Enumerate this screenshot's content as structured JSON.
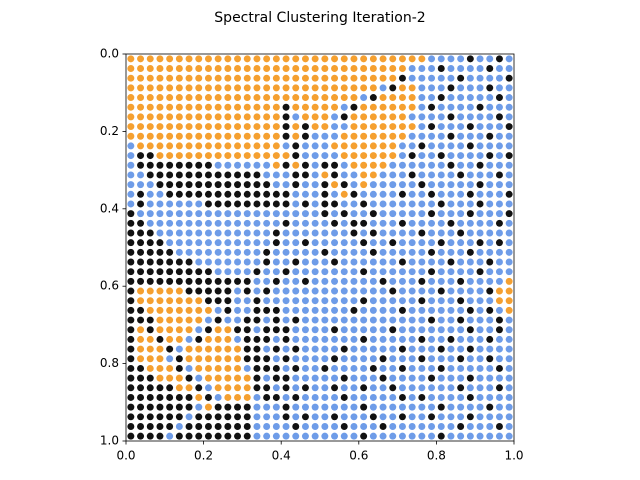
{
  "chart_data": {
    "type": "scatter",
    "title": "Spectral Clustering Iteration-2",
    "xlim": [
      0,
      1
    ],
    "ylim": [
      1,
      0
    ],
    "xticks": [
      {
        "value": 0,
        "label": "0.0"
      },
      0.2,
      0.4,
      0.6,
      0.8,
      {
        "value": 1,
        "label": "1.0"
      }
    ],
    "yticks": [
      {
        "value": 0,
        "label": "0.0"
      },
      0.2,
      0.4,
      0.6,
      0.8,
      {
        "value": 1,
        "label": "1.0"
      }
    ],
    "cluster_colors": [
      "#f5a030",
      "#6e9ce8",
      "#111111"
    ],
    "clusters": [
      [
        0,
        0,
        0,
        0,
        0,
        0,
        0,
        0,
        0,
        0,
        0,
        0,
        0,
        0,
        0,
        0,
        0,
        0,
        0,
        0,
        0,
        0,
        0,
        0,
        0,
        0,
        0,
        0,
        0,
        0,
        0,
        1,
        1,
        1,
        1,
        2,
        1,
        1,
        2,
        1
      ],
      [
        0,
        0,
        0,
        0,
        0,
        0,
        0,
        0,
        0,
        0,
        0,
        0,
        0,
        0,
        0,
        0,
        0,
        0,
        0,
        0,
        0,
        0,
        0,
        0,
        0,
        0,
        0,
        0,
        0,
        1,
        1,
        1,
        2,
        1,
        1,
        1,
        1,
        2,
        1,
        1
      ],
      [
        0,
        0,
        0,
        0,
        0,
        0,
        0,
        0,
        0,
        0,
        0,
        0,
        0,
        0,
        0,
        0,
        0,
        0,
        0,
        0,
        0,
        0,
        0,
        0,
        0,
        0,
        0,
        0,
        2,
        1,
        1,
        1,
        1,
        1,
        2,
        1,
        1,
        1,
        1,
        2
      ],
      [
        0,
        0,
        0,
        0,
        0,
        0,
        0,
        0,
        0,
        0,
        0,
        0,
        0,
        0,
        0,
        0,
        0,
        0,
        0,
        0,
        0,
        0,
        0,
        0,
        0,
        0,
        1,
        2,
        0,
        0,
        1,
        1,
        1,
        2,
        1,
        1,
        1,
        2,
        1,
        1
      ],
      [
        0,
        0,
        0,
        0,
        0,
        0,
        0,
        0,
        0,
        0,
        0,
        0,
        0,
        0,
        0,
        0,
        0,
        0,
        0,
        0,
        0,
        0,
        0,
        0,
        1,
        2,
        0,
        0,
        0,
        0,
        1,
        1,
        2,
        1,
        1,
        1,
        1,
        1,
        2,
        1
      ],
      [
        0,
        0,
        0,
        0,
        0,
        0,
        0,
        0,
        0,
        0,
        0,
        0,
        0,
        0,
        0,
        0,
        2,
        0,
        0,
        0,
        0,
        0,
        1,
        2,
        0,
        0,
        0,
        0,
        0,
        0,
        1,
        2,
        1,
        1,
        1,
        1,
        2,
        1,
        1,
        1
      ],
      [
        0,
        0,
        0,
        0,
        0,
        0,
        0,
        0,
        0,
        0,
        0,
        0,
        0,
        0,
        0,
        0,
        2,
        1,
        0,
        0,
        0,
        1,
        2,
        0,
        0,
        0,
        0,
        0,
        0,
        1,
        1,
        1,
        1,
        2,
        1,
        1,
        1,
        1,
        2,
        1
      ],
      [
        0,
        0,
        0,
        0,
        0,
        0,
        0,
        0,
        0,
        0,
        0,
        0,
        0,
        0,
        0,
        0,
        2,
        0,
        2,
        0,
        0,
        1,
        1,
        0,
        0,
        0,
        0,
        0,
        0,
        0,
        1,
        2,
        1,
        1,
        1,
        2,
        1,
        1,
        1,
        2
      ],
      [
        0,
        0,
        0,
        0,
        0,
        0,
        0,
        0,
        0,
        0,
        0,
        0,
        0,
        0,
        0,
        0,
        2,
        0,
        2,
        1,
        1,
        1,
        0,
        0,
        0,
        0,
        0,
        0,
        0,
        1,
        1,
        1,
        1,
        2,
        1,
        1,
        1,
        2,
        1,
        1
      ],
      [
        1,
        0,
        0,
        0,
        0,
        0,
        0,
        0,
        0,
        0,
        0,
        0,
        0,
        0,
        0,
        0,
        1,
        2,
        1,
        1,
        1,
        0,
        0,
        0,
        0,
        0,
        0,
        0,
        1,
        1,
        2,
        1,
        1,
        1,
        1,
        2,
        1,
        1,
        1,
        1
      ],
      [
        1,
        2,
        2,
        0,
        0,
        0,
        0,
        0,
        0,
        0,
        0,
        0,
        0,
        0,
        0,
        0,
        0,
        2,
        1,
        1,
        1,
        1,
        0,
        0,
        0,
        0,
        0,
        0,
        1,
        2,
        1,
        1,
        2,
        1,
        1,
        1,
        1,
        2,
        1,
        2
      ],
      [
        1,
        2,
        2,
        2,
        2,
        2,
        2,
        2,
        2,
        1,
        1,
        1,
        1,
        1,
        1,
        0,
        2,
        0,
        2,
        1,
        2,
        2,
        1,
        0,
        0,
        0,
        0,
        1,
        1,
        1,
        1,
        1,
        1,
        2,
        1,
        1,
        2,
        1,
        1,
        1
      ],
      [
        1,
        1,
        2,
        2,
        2,
        2,
        2,
        2,
        2,
        2,
        2,
        2,
        2,
        2,
        1,
        1,
        1,
        2,
        2,
        1,
        0,
        2,
        1,
        1,
        0,
        0,
        1,
        1,
        1,
        2,
        1,
        1,
        1,
        1,
        2,
        1,
        1,
        1,
        2,
        1
      ],
      [
        1,
        1,
        1,
        2,
        2,
        2,
        2,
        2,
        2,
        2,
        2,
        2,
        2,
        2,
        2,
        1,
        1,
        2,
        1,
        1,
        2,
        0,
        2,
        1,
        0,
        1,
        1,
        1,
        1,
        1,
        2,
        1,
        1,
        1,
        1,
        1,
        2,
        1,
        1,
        1
      ],
      [
        1,
        2,
        1,
        1,
        2,
        2,
        2,
        2,
        2,
        2,
        2,
        2,
        2,
        2,
        2,
        2,
        2,
        1,
        1,
        1,
        2,
        1,
        0,
        2,
        1,
        1,
        1,
        1,
        2,
        1,
        1,
        2,
        1,
        1,
        1,
        2,
        1,
        1,
        1,
        2
      ],
      [
        1,
        2,
        1,
        1,
        1,
        1,
        1,
        1,
        2,
        2,
        2,
        2,
        2,
        2,
        2,
        2,
        2,
        1,
        2,
        1,
        2,
        2,
        1,
        1,
        2,
        1,
        1,
        1,
        1,
        1,
        1,
        1,
        2,
        1,
        1,
        1,
        2,
        1,
        1,
        1
      ],
      [
        2,
        1,
        1,
        1,
        1,
        1,
        1,
        1,
        1,
        1,
        1,
        1,
        1,
        1,
        1,
        1,
        1,
        1,
        1,
        1,
        2,
        1,
        2,
        1,
        1,
        2,
        1,
        1,
        1,
        1,
        1,
        2,
        1,
        1,
        1,
        2,
        1,
        1,
        1,
        2
      ],
      [
        2,
        2,
        1,
        1,
        1,
        1,
        1,
        1,
        1,
        1,
        1,
        1,
        1,
        1,
        1,
        1,
        2,
        1,
        1,
        1,
        1,
        2,
        1,
        2,
        2,
        1,
        1,
        1,
        2,
        1,
        1,
        1,
        1,
        2,
        1,
        1,
        1,
        1,
        2,
        1
      ],
      [
        2,
        2,
        2,
        1,
        1,
        1,
        1,
        1,
        1,
        1,
        1,
        1,
        1,
        1,
        1,
        2,
        1,
        1,
        1,
        1,
        1,
        1,
        1,
        2,
        1,
        2,
        1,
        1,
        1,
        1,
        2,
        1,
        1,
        1,
        2,
        1,
        1,
        1,
        1,
        1
      ],
      [
        2,
        2,
        2,
        2,
        1,
        1,
        1,
        1,
        1,
        1,
        1,
        1,
        1,
        1,
        1,
        2,
        1,
        1,
        2,
        1,
        1,
        1,
        1,
        1,
        2,
        1,
        1,
        2,
        1,
        1,
        1,
        1,
        2,
        1,
        1,
        1,
        2,
        1,
        2,
        1
      ],
      [
        2,
        2,
        2,
        2,
        2,
        1,
        1,
        1,
        1,
        1,
        1,
        1,
        1,
        1,
        2,
        1,
        1,
        1,
        1,
        1,
        2,
        1,
        1,
        1,
        1,
        2,
        1,
        1,
        1,
        1,
        1,
        2,
        1,
        1,
        1,
        2,
        1,
        1,
        1,
        1
      ],
      [
        2,
        2,
        2,
        2,
        2,
        2,
        2,
        1,
        1,
        1,
        1,
        1,
        1,
        1,
        2,
        1,
        1,
        2,
        1,
        1,
        1,
        2,
        1,
        1,
        1,
        1,
        1,
        1,
        2,
        1,
        1,
        1,
        1,
        2,
        1,
        1,
        1,
        2,
        1,
        1
      ],
      [
        2,
        2,
        2,
        2,
        2,
        2,
        2,
        2,
        2,
        1,
        1,
        1,
        1,
        2,
        1,
        1,
        2,
        1,
        1,
        1,
        1,
        1,
        1,
        1,
        2,
        1,
        1,
        1,
        1,
        1,
        1,
        2,
        1,
        1,
        1,
        1,
        2,
        1,
        1,
        1
      ],
      [
        2,
        2,
        2,
        2,
        2,
        2,
        2,
        2,
        2,
        2,
        2,
        2,
        2,
        1,
        1,
        2,
        1,
        1,
        2,
        1,
        1,
        1,
        1,
        1,
        1,
        1,
        2,
        1,
        1,
        1,
        2,
        1,
        1,
        1,
        2,
        1,
        1,
        1,
        1,
        0
      ],
      [
        2,
        0,
        0,
        0,
        0,
        0,
        2,
        2,
        2,
        2,
        2,
        1,
        2,
        1,
        2,
        1,
        1,
        1,
        1,
        1,
        1,
        1,
        1,
        1,
        1,
        1,
        1,
        2,
        1,
        1,
        1,
        1,
        2,
        1,
        1,
        1,
        1,
        2,
        0,
        0
      ],
      [
        2,
        0,
        0,
        0,
        0,
        0,
        0,
        0,
        2,
        2,
        2,
        1,
        1,
        2,
        1,
        1,
        1,
        1,
        1,
        1,
        1,
        1,
        1,
        1,
        2,
        1,
        1,
        1,
        1,
        1,
        2,
        1,
        1,
        1,
        2,
        1,
        1,
        1,
        0,
        0
      ],
      [
        2,
        2,
        0,
        0,
        0,
        0,
        0,
        0,
        0,
        1,
        2,
        1,
        1,
        2,
        2,
        2,
        1,
        1,
        1,
        1,
        1,
        1,
        1,
        2,
        1,
        1,
        1,
        1,
        2,
        1,
        1,
        1,
        1,
        1,
        1,
        2,
        1,
        2,
        1,
        0
      ],
      [
        2,
        2,
        2,
        0,
        0,
        0,
        0,
        0,
        1,
        2,
        1,
        1,
        2,
        2,
        1,
        2,
        1,
        2,
        1,
        1,
        1,
        1,
        1,
        1,
        1,
        1,
        1,
        1,
        1,
        1,
        1,
        2,
        1,
        1,
        2,
        1,
        1,
        1,
        2,
        1
      ],
      [
        2,
        0,
        2,
        0,
        0,
        0,
        0,
        1,
        2,
        0,
        0,
        2,
        2,
        1,
        2,
        2,
        2,
        1,
        1,
        1,
        1,
        2,
        1,
        1,
        1,
        1,
        1,
        2,
        1,
        1,
        1,
        1,
        1,
        1,
        1,
        2,
        1,
        1,
        2,
        1
      ],
      [
        2,
        0,
        0,
        2,
        0,
        0,
        1,
        2,
        0,
        0,
        0,
        1,
        2,
        2,
        2,
        1,
        2,
        1,
        1,
        1,
        1,
        1,
        1,
        1,
        2,
        1,
        1,
        1,
        1,
        1,
        2,
        1,
        1,
        2,
        1,
        1,
        1,
        2,
        1,
        1
      ],
      [
        2,
        0,
        0,
        0,
        2,
        1,
        0,
        0,
        0,
        0,
        0,
        0,
        2,
        2,
        1,
        2,
        1,
        2,
        1,
        1,
        1,
        1,
        2,
        1,
        1,
        1,
        1,
        1,
        2,
        1,
        1,
        1,
        2,
        1,
        1,
        2,
        1,
        1,
        1,
        1
      ],
      [
        2,
        0,
        0,
        0,
        1,
        2,
        0,
        0,
        0,
        0,
        0,
        0,
        2,
        2,
        2,
        1,
        2,
        1,
        1,
        1,
        1,
        2,
        1,
        1,
        1,
        1,
        2,
        1,
        1,
        1,
        2,
        1,
        1,
        1,
        2,
        1,
        1,
        2,
        1,
        1
      ],
      [
        2,
        2,
        0,
        0,
        0,
        2,
        1,
        0,
        0,
        0,
        0,
        0,
        1,
        2,
        2,
        2,
        1,
        2,
        1,
        1,
        2,
        1,
        1,
        1,
        1,
        2,
        1,
        1,
        2,
        1,
        1,
        1,
        2,
        1,
        1,
        1,
        1,
        1,
        2,
        1
      ],
      [
        2,
        2,
        2,
        0,
        0,
        0,
        2,
        1,
        0,
        0,
        0,
        0,
        0,
        2,
        1,
        2,
        2,
        1,
        1,
        1,
        1,
        1,
        2,
        1,
        1,
        1,
        2,
        1,
        1,
        1,
        1,
        2,
        1,
        1,
        1,
        2,
        1,
        1,
        1,
        1
      ],
      [
        2,
        2,
        2,
        2,
        2,
        0,
        0,
        2,
        1,
        0,
        0,
        0,
        0,
        2,
        2,
        1,
        2,
        1,
        2,
        1,
        1,
        2,
        1,
        1,
        2,
        1,
        1,
        2,
        1,
        1,
        1,
        1,
        1,
        1,
        2,
        1,
        1,
        1,
        2,
        1
      ],
      [
        2,
        2,
        2,
        2,
        2,
        2,
        2,
        0,
        2,
        1,
        0,
        0,
        0,
        1,
        2,
        2,
        1,
        2,
        1,
        1,
        1,
        1,
        2,
        1,
        1,
        1,
        1,
        1,
        2,
        1,
        2,
        1,
        1,
        1,
        1,
        2,
        1,
        1,
        1,
        1
      ],
      [
        2,
        2,
        2,
        2,
        2,
        2,
        2,
        1,
        0,
        2,
        2,
        2,
        2,
        1,
        1,
        1,
        2,
        1,
        1,
        1,
        1,
        1,
        1,
        1,
        2,
        1,
        1,
        1,
        1,
        1,
        1,
        1,
        2,
        1,
        1,
        1,
        1,
        2,
        1,
        1
      ],
      [
        2,
        2,
        2,
        2,
        2,
        2,
        1,
        2,
        2,
        2,
        2,
        2,
        2,
        1,
        1,
        1,
        2,
        1,
        2,
        1,
        1,
        2,
        1,
        1,
        1,
        2,
        1,
        1,
        2,
        1,
        1,
        2,
        1,
        1,
        1,
        2,
        1,
        1,
        1,
        1
      ],
      [
        2,
        2,
        2,
        2,
        2,
        1,
        2,
        2,
        2,
        2,
        2,
        2,
        2,
        1,
        1,
        1,
        1,
        2,
        1,
        1,
        1,
        1,
        2,
        1,
        1,
        1,
        2,
        1,
        1,
        1,
        1,
        1,
        1,
        1,
        2,
        1,
        1,
        1,
        2,
        1
      ],
      [
        2,
        2,
        2,
        2,
        1,
        2,
        2,
        2,
        2,
        2,
        2,
        2,
        2,
        1,
        1,
        1,
        1,
        1,
        1,
        1,
        1,
        1,
        1,
        1,
        2,
        1,
        1,
        1,
        1,
        1,
        1,
        1,
        2,
        1,
        1,
        1,
        1,
        1,
        1,
        1
      ]
    ]
  }
}
